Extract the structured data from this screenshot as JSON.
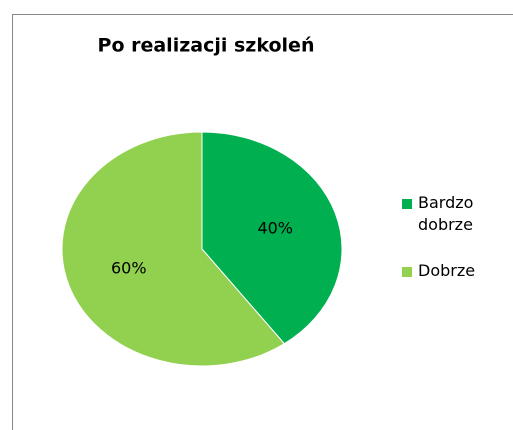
{
  "chart_data": {
    "type": "pie",
    "title": "Po realizacji szkoleń",
    "categories": [
      "Bardzo dobrze",
      "Dobrze"
    ],
    "values": [
      40,
      60
    ],
    "value_labels": [
      "40%",
      "60%"
    ],
    "colors": [
      "#00b050",
      "#92d050"
    ],
    "legend": "right"
  }
}
